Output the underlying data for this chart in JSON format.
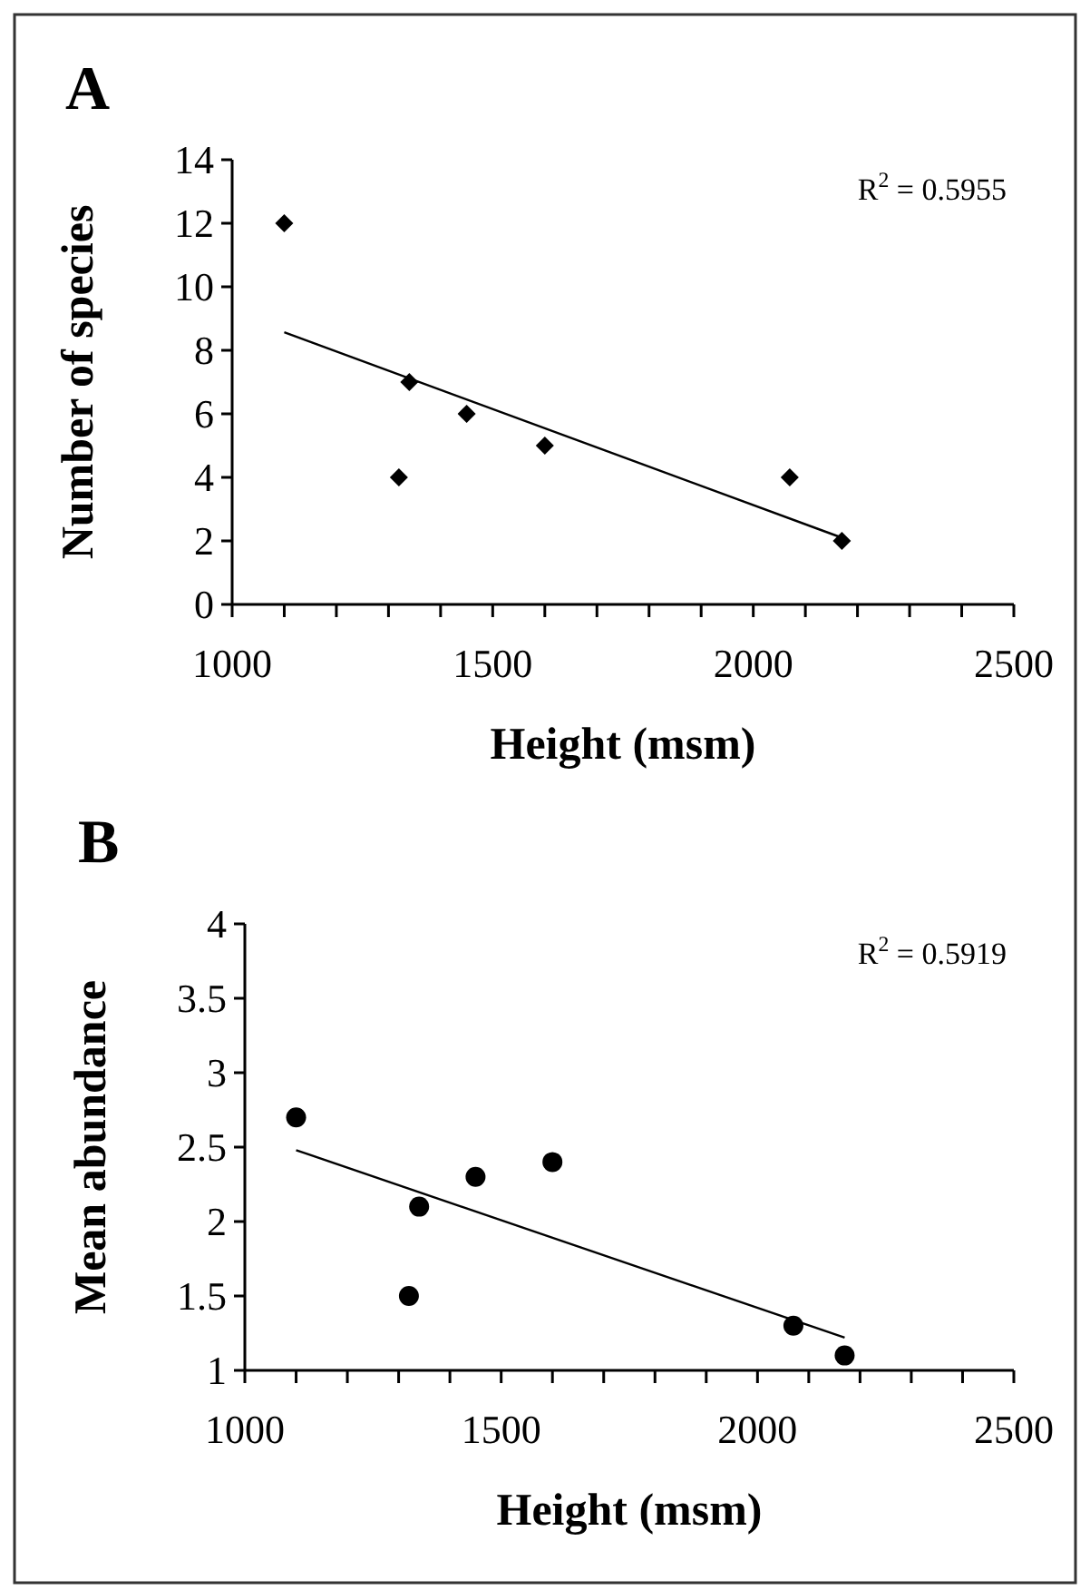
{
  "chart_data": [
    {
      "type": "scatter",
      "title": "A",
      "xlabel": "Height (msm)",
      "ylabel": "Number of species",
      "xlim": [
        1000,
        2500
      ],
      "ylim": [
        0,
        14
      ],
      "xticks": [
        1000,
        {
          "value": 1100,
          "label": null
        },
        {
          "value": 1200,
          "label": null
        },
        {
          "value": 1300,
          "label": null
        },
        {
          "value": 1400,
          "label": null
        },
        1500,
        {
          "value": 1600,
          "label": null
        },
        {
          "value": 1700,
          "label": null
        },
        {
          "value": 1800,
          "label": null
        },
        {
          "value": 1900,
          "label": null
        },
        2000,
        {
          "value": 2100,
          "label": null
        },
        {
          "value": 2200,
          "label": null
        },
        {
          "value": 2300,
          "label": null
        },
        {
          "value": 2400,
          "label": null
        },
        2500
      ],
      "yticks": [
        0,
        2,
        4,
        6,
        8,
        10,
        12,
        14
      ],
      "annotations": [
        "R$^{2}$ = 0.5955"
      ],
      "series": [
        {
          "color": "#000000",
          "marker": "diamond",
          "x": [
            1100,
            1320,
            1340,
            1450,
            1600,
            2070,
            2170
          ],
          "values": [
            12,
            4,
            7,
            6,
            5,
            4,
            2
          ]
        },
        {
          "type": "line",
          "marker": "none",
          "color": "#000000",
          "x": [
            1100,
            2170
          ],
          "values": [
            8.57,
            2.1
          ]
        }
      ]
    },
    {
      "type": "scatter",
      "title": "B",
      "xlabel": "Height (msm)",
      "ylabel": "Mean abundance",
      "xlim": [
        1000,
        2500
      ],
      "ylim": [
        1,
        4
      ],
      "xticks": [
        1000,
        {
          "value": 1100,
          "label": null
        },
        {
          "value": 1200,
          "label": null
        },
        {
          "value": 1300,
          "label": null
        },
        {
          "value": 1400,
          "label": null
        },
        1500,
        {
          "value": 1600,
          "label": null
        },
        {
          "value": 1700,
          "label": null
        },
        {
          "value": 1800,
          "label": null
        },
        {
          "value": 1900,
          "label": null
        },
        2000,
        {
          "value": 2100,
          "label": null
        },
        {
          "value": 2200,
          "label": null
        },
        {
          "value": 2300,
          "label": null
        },
        {
          "value": 2400,
          "label": null
        },
        2500
      ],
      "yticks": [
        1,
        1.5,
        2,
        2.5,
        3,
        3.5,
        4
      ],
      "annotations": [
        "R$^{2}$ = 0.5919"
      ],
      "series": [
        {
          "color": "#000000",
          "marker": "circle",
          "x": [
            1100,
            1320,
            1340,
            1450,
            1600,
            2070,
            2170
          ],
          "values": [
            2.7,
            1.5,
            2.1,
            2.3,
            2.4,
            1.3,
            1.1
          ]
        },
        {
          "type": "line",
          "marker": "none",
          "color": "#000000",
          "x": [
            1100,
            2170
          ],
          "values": [
            2.48,
            1.22
          ]
        }
      ]
    }
  ]
}
